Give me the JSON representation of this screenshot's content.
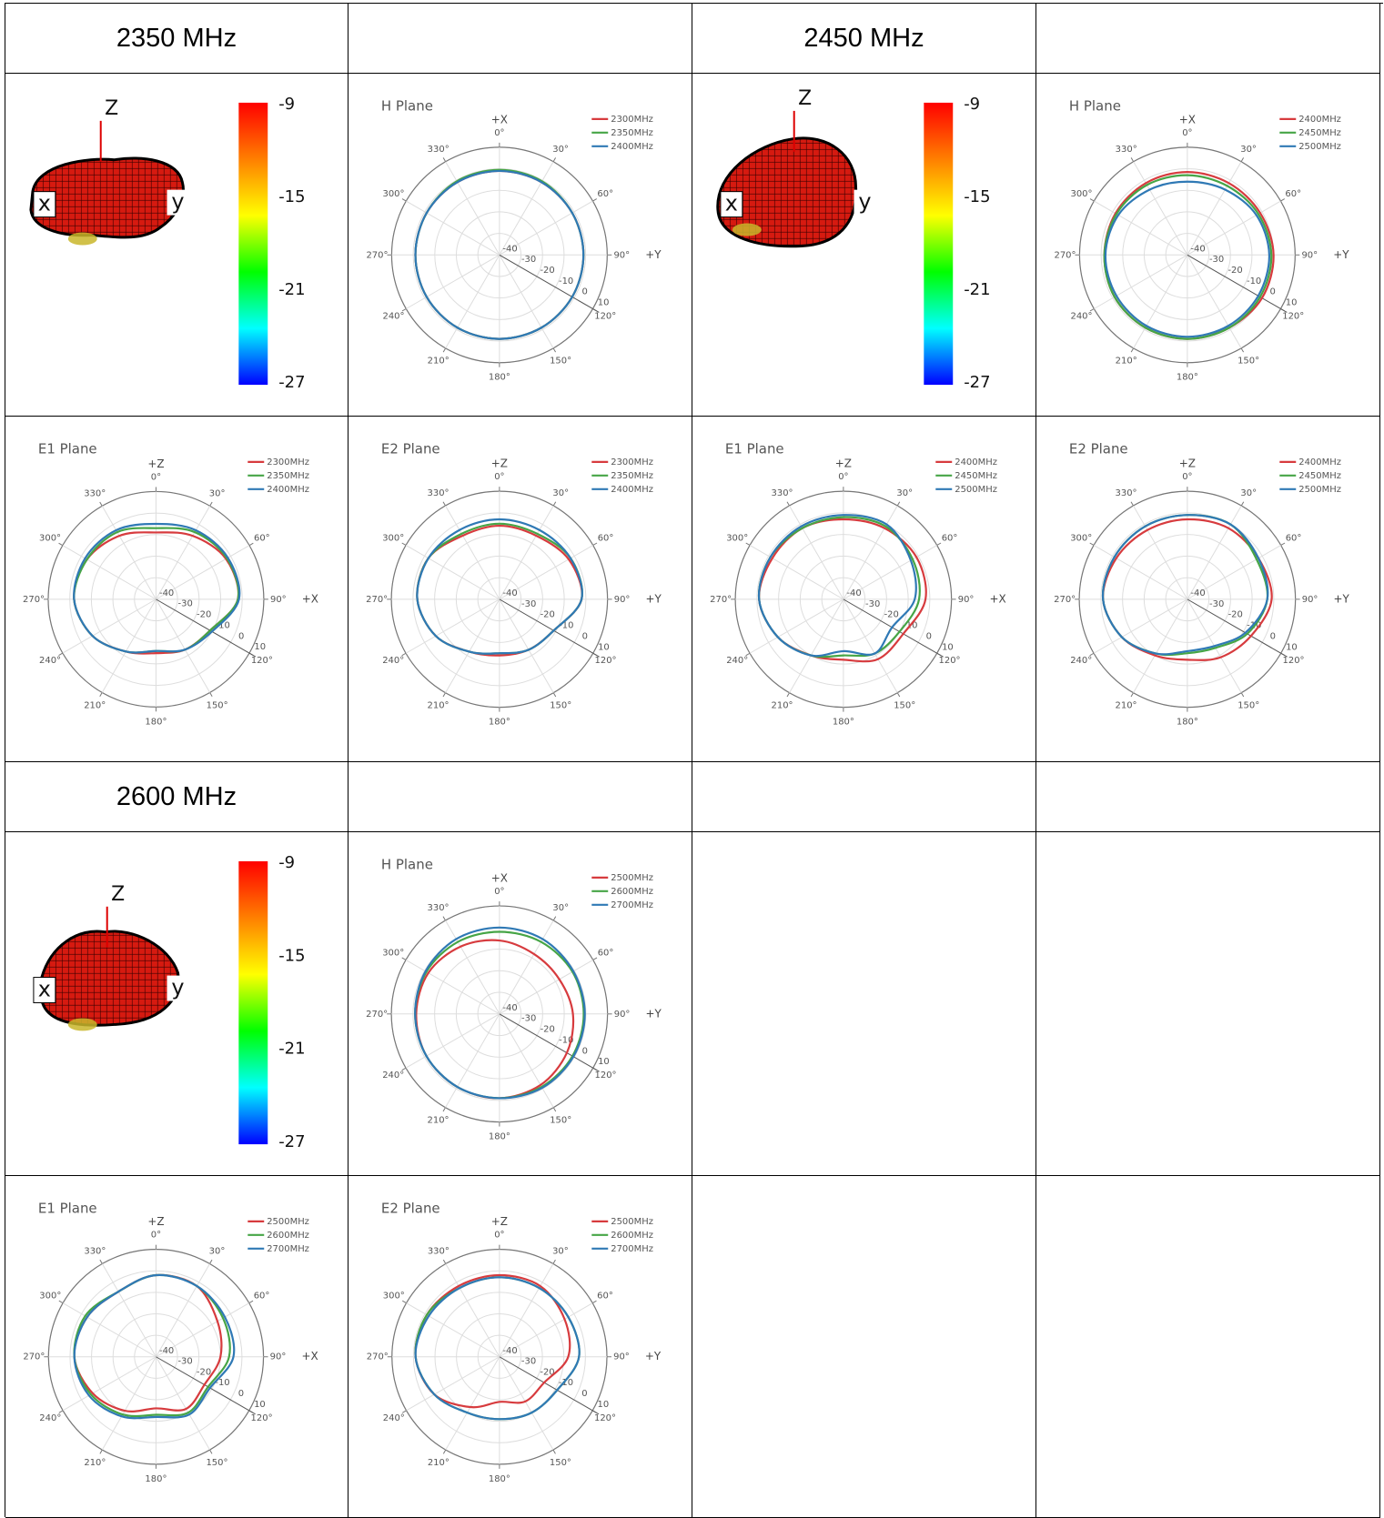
{
  "headers": [
    "2350 MHz",
    "2450 MHz",
    "2600 MHz"
  ],
  "colors": {
    "red": "#d73b3e",
    "green": "#46a546",
    "blue": "#2f79b5"
  },
  "colorbar": {
    "labels": [
      "-9",
      "-15",
      "-21",
      "-27"
    ],
    "colors": [
      "#ff0000",
      "#ff7f00",
      "#ffff00",
      "#00ff00",
      "#00ffff",
      "#0000ff"
    ]
  },
  "pattern3d_axes": {
    "z": "Z",
    "x": "x",
    "y": "y"
  },
  "polar_axis": {
    "angles": [
      "0°",
      "30°",
      "60°",
      "90°",
      "120°",
      "150°",
      "180°",
      "210°",
      "240°",
      "270°",
      "300°",
      "330°"
    ],
    "radial_ticks": [
      "-40",
      "-30",
      "-20",
      "-10",
      "0",
      "10"
    ]
  },
  "chart_data": [
    {
      "type": "line",
      "title": "H Plane",
      "top_axis": "+X",
      "right_axis": "+Y",
      "band": "2350 MHz",
      "series": [
        {
          "name": "2300MHz",
          "color": "red",
          "values": [
            -1,
            -1,
            -1,
            -1,
            -1,
            -1,
            -1,
            -1,
            -1,
            -1,
            -1,
            -1
          ]
        },
        {
          "name": "2350MHz",
          "color": "green",
          "values": [
            -0.5,
            -0.5,
            -1,
            -1,
            -1,
            -1,
            -1,
            -1,
            -1,
            -1,
            -1,
            -0.5
          ]
        },
        {
          "name": "2400MHz",
          "color": "blue",
          "values": [
            -1,
            -1,
            -1,
            -1,
            -1,
            -1,
            -1,
            -1,
            -1,
            -1,
            -1,
            -1
          ]
        }
      ]
    },
    {
      "type": "line",
      "title": "H Plane",
      "top_axis": "+X",
      "right_axis": "+Y",
      "band": "2450 MHz",
      "series": [
        {
          "name": "2400MHz",
          "color": "red",
          "values": [
            -1.5,
            -1.5,
            -1,
            0,
            0,
            -1,
            -1,
            -1,
            -1,
            -1.5,
            -1.5,
            -1.5
          ]
        },
        {
          "name": "2450MHz",
          "color": "green",
          "values": [
            -3,
            -3,
            -2,
            -1,
            -1,
            -1,
            -1,
            -1,
            -1,
            -1.5,
            -2,
            -2.5
          ]
        },
        {
          "name": "2500MHz",
          "color": "blue",
          "values": [
            -6,
            -5,
            -3,
            -2,
            -2,
            -2,
            -2,
            -2,
            -2,
            -2,
            -3,
            -5
          ]
        }
      ]
    },
    {
      "type": "line",
      "title": "E1 Plane",
      "top_axis": "+Z",
      "right_axis": "+X",
      "band": "2350 MHz",
      "series": [
        {
          "name": "2300MHz",
          "color": "red",
          "values": [
            -9,
            -6,
            -2.5,
            -2,
            -11,
            -13,
            -15,
            -12,
            -6,
            -2,
            -3,
            -6
          ]
        },
        {
          "name": "2350MHz",
          "color": "green",
          "values": [
            -7,
            -4,
            -2,
            -2,
            -11,
            -13,
            -16,
            -12,
            -6,
            -2,
            -3,
            -4
          ]
        },
        {
          "name": "2400MHz",
          "color": "blue",
          "values": [
            -5,
            -3,
            -1.5,
            -1.5,
            -10,
            -13,
            -16,
            -12,
            -6,
            -2,
            -2,
            -3
          ]
        }
      ]
    },
    {
      "type": "line",
      "title": "E2 Plane",
      "top_axis": "+Z",
      "right_axis": "+Y",
      "band": "2350 MHz",
      "series": [
        {
          "name": "2300MHz",
          "color": "red",
          "values": [
            -6,
            -6,
            -3,
            -2,
            -11,
            -13,
            -14,
            -12,
            -6,
            -2,
            -2,
            -6
          ]
        },
        {
          "name": "2350MHz",
          "color": "green",
          "values": [
            -5,
            -5,
            -2,
            -2,
            -11,
            -13,
            -15,
            -12,
            -6,
            -2,
            -2,
            -5
          ]
        },
        {
          "name": "2400MHz",
          "color": "blue",
          "values": [
            -3,
            -3,
            -2,
            -2,
            -11,
            -13,
            -15,
            -12,
            -6,
            -2,
            -2,
            -3
          ]
        }
      ]
    },
    {
      "type": "line",
      "title": "E1 Plane",
      "top_axis": "+Z",
      "right_axis": "+X",
      "band": "2450 MHz",
      "series": [
        {
          "name": "2400MHz",
          "color": "red",
          "values": [
            -3,
            -2,
            -1,
            -2,
            -8,
            -8,
            -12,
            -10,
            -5,
            -1,
            -2,
            -2
          ]
        },
        {
          "name": "2450MHz",
          "color": "green",
          "values": [
            -2,
            -1,
            -3,
            -5,
            -10,
            -11,
            -14,
            -10,
            -5,
            -1,
            -1,
            -2
          ]
        },
        {
          "name": "2500MHz",
          "color": "blue",
          "values": [
            -1,
            0,
            -4,
            -7,
            -14,
            -11,
            -16,
            -10,
            -5,
            -1,
            -1,
            -1
          ]
        }
      ]
    },
    {
      "type": "line",
      "title": "E2 Plane",
      "top_axis": "+Z",
      "right_axis": "+Y",
      "band": "2450 MHz",
      "series": [
        {
          "name": "2400MHz",
          "color": "red",
          "values": [
            -3,
            -2,
            -2,
            -1,
            -6,
            -9,
            -12,
            -10,
            -5,
            -1,
            -2,
            -3
          ]
        },
        {
          "name": "2450MHz",
          "color": "green",
          "values": [
            -1,
            0,
            -3,
            -3,
            -8,
            -14,
            -15,
            -11,
            -5,
            -1,
            -1,
            -1
          ]
        },
        {
          "name": "2500MHz",
          "color": "blue",
          "values": [
            -1,
            0,
            -2,
            -3,
            -9,
            -15,
            -16,
            -11,
            -5,
            -1,
            -1,
            -1
          ]
        }
      ]
    },
    {
      "type": "line",
      "title": "H Plane",
      "top_axis": "+X",
      "right_axis": "+Y",
      "band": "2600 MHz",
      "series": [
        {
          "name": "2500MHz",
          "color": "red",
          "values": [
            -6,
            -8,
            -8,
            -6,
            -4,
            -2,
            -1,
            -1,
            -1,
            -1.5,
            -2,
            -4
          ]
        },
        {
          "name": "2600MHz",
          "color": "green",
          "values": [
            -2,
            -1.5,
            -1,
            -1,
            -1,
            -1,
            -1,
            -1,
            -1,
            -1,
            -1,
            -1.5
          ]
        },
        {
          "name": "2700MHz",
          "color": "blue",
          "values": [
            0,
            0,
            -0.5,
            -0.5,
            -0.5,
            -0.5,
            -1,
            -1,
            -1,
            -1,
            -0.5,
            0
          ]
        }
      ]
    },
    {
      "type": "line",
      "title": "E1 Plane",
      "top_axis": "+Z",
      "right_axis": "+X",
      "band": "2600 MHz",
      "series": [
        {
          "name": "2500MHz",
          "color": "red",
          "values": [
            -2,
            -2,
            -7,
            -10,
            -14,
            -12,
            -16,
            -11,
            -6,
            -2,
            -3,
            -5
          ]
        },
        {
          "name": "2600MHz",
          "color": "green",
          "values": [
            -2,
            -2,
            -4,
            -6,
            -12,
            -10,
            -13,
            -9,
            -5,
            -2,
            -2,
            -5
          ]
        },
        {
          "name": "2700MHz",
          "color": "blue",
          "values": [
            -2,
            -2,
            -3,
            -4,
            -11,
            -9,
            -12,
            -8,
            -4,
            -2,
            -3,
            -5
          ]
        }
      ]
    },
    {
      "type": "line",
      "title": "E2 Plane",
      "top_axis": "+Z",
      "right_axis": "+Y",
      "band": "2600 MHz",
      "series": [
        {
          "name": "2500MHz",
          "color": "red",
          "values": [
            -2,
            -2,
            -5,
            -8,
            -16,
            -16,
            -19,
            -13,
            -5,
            -1,
            -1,
            -2
          ]
        },
        {
          "name": "2600MHz",
          "color": "green",
          "values": [
            -3,
            -3,
            -3,
            -3,
            -9,
            -10,
            -11,
            -10,
            -5,
            -1,
            -1,
            -3
          ]
        },
        {
          "name": "2700MHz",
          "color": "blue",
          "values": [
            -3,
            -3,
            -3,
            -3,
            -9,
            -10,
            -11,
            -10,
            -5,
            -1,
            -2,
            -3
          ]
        }
      ]
    }
  ]
}
